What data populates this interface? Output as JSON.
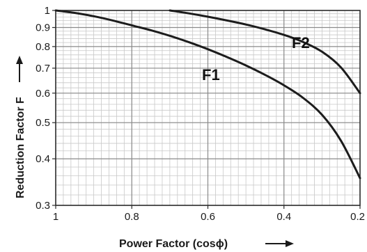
{
  "chart_data": {
    "type": "line",
    "title": "",
    "xlabel": "Power Factor (cosϕ)",
    "ylabel": "Reduction Factor F",
    "x_reversed": true,
    "y_scale": "log",
    "xlim": [
      1.0,
      0.2
    ],
    "ylim": [
      0.3,
      1.0
    ],
    "grid": true,
    "x_ticks": [
      {
        "value": 1.0,
        "label": "1"
      },
      {
        "value": 0.8,
        "label": "0.8"
      },
      {
        "value": 0.6,
        "label": "0.6"
      },
      {
        "value": 0.4,
        "label": "0.4"
      },
      {
        "value": 0.2,
        "label": "0.2"
      }
    ],
    "y_ticks": [
      {
        "value": 1.0,
        "label": "1"
      },
      {
        "value": 0.9,
        "label": "0.9"
      },
      {
        "value": 0.8,
        "label": "0.8"
      },
      {
        "value": 0.7,
        "label": "0.7"
      },
      {
        "value": 0.6,
        "label": "0.6"
      },
      {
        "value": 0.5,
        "label": "0.5"
      },
      {
        "value": 0.4,
        "label": "0.4"
      },
      {
        "value": 0.3,
        "label": "0.3"
      }
    ],
    "series": [
      {
        "name": "F1",
        "x": [
          1.0,
          0.95,
          0.9,
          0.85,
          0.8,
          0.75,
          0.7,
          0.65,
          0.6,
          0.55,
          0.5,
          0.45,
          0.4,
          0.35,
          0.3,
          0.25,
          0.2
        ],
        "y": [
          1.0,
          0.985,
          0.965,
          0.94,
          0.912,
          0.885,
          0.855,
          0.822,
          0.787,
          0.75,
          0.712,
          0.672,
          0.63,
          0.583,
          0.525,
          0.447,
          0.355
        ]
      },
      {
        "name": "F2",
        "x": [
          0.7,
          0.65,
          0.6,
          0.55,
          0.5,
          0.45,
          0.4,
          0.35,
          0.3,
          0.25,
          0.2
        ],
        "y": [
          1.0,
          0.982,
          0.962,
          0.94,
          0.917,
          0.89,
          0.86,
          0.823,
          0.775,
          0.703,
          0.6
        ]
      }
    ]
  }
}
